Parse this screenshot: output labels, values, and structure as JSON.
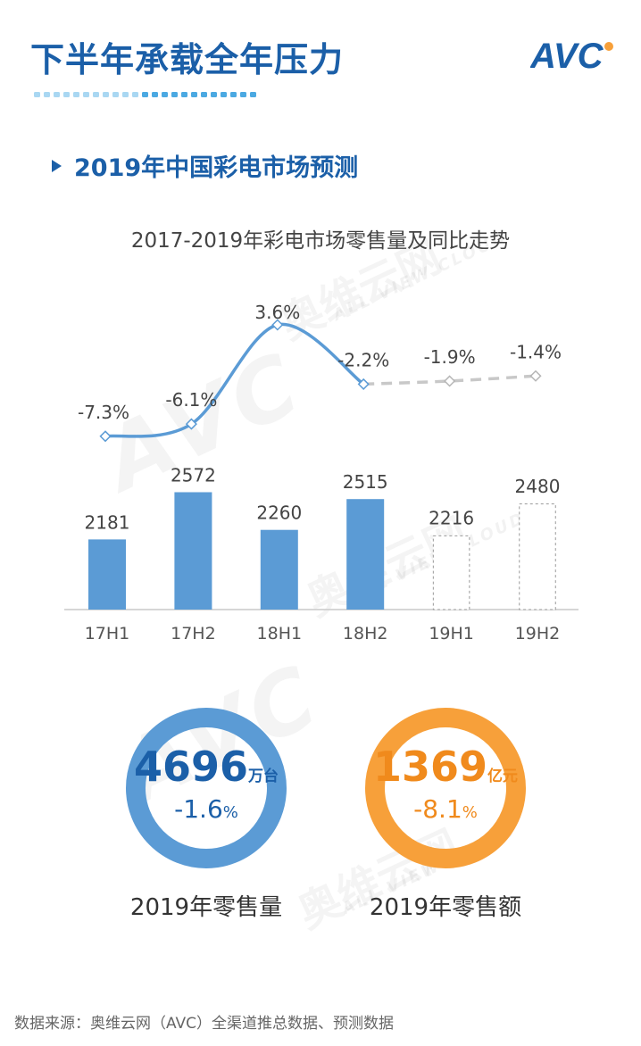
{
  "header": {
    "title": "下半年承载全年压力",
    "logo_text": "AVC"
  },
  "section": {
    "title": "2019年中国彩电市场预测"
  },
  "watermark": {
    "big": "AVC",
    "cn": "奥维云网",
    "en": "ALL VIEW CLOUD"
  },
  "chart_data": {
    "type": "bar",
    "title": "2017-2019年彩电市场零售量及同比走势",
    "categories": [
      "17H1",
      "17H2",
      "18H1",
      "18H2",
      "19H1",
      "19H2"
    ],
    "series": [
      {
        "values": [
          2181,
          2572,
          2260,
          2515,
          2216,
          2480
        ],
        "forecast": [
          false,
          false,
          false,
          false,
          true,
          true
        ],
        "color": "#5b9bd5"
      },
      {
        "type": "line",
        "values": [
          -7.3,
          -6.1,
          3.6,
          -2.2,
          -1.9,
          -1.4
        ],
        "labels": [
          "-7.3%",
          "-6.1%",
          "3.6%",
          "-2.2%",
          "-1.9%",
          "-1.4%"
        ],
        "forecast": [
          false,
          false,
          false,
          false,
          true,
          true
        ],
        "color": "#5b9bd5",
        "forecast_color": "#c8c8c8"
      }
    ]
  },
  "summary": {
    "volume": {
      "value": "4696",
      "unit": "万台",
      "change": "-1.6",
      "pct_sign": "%",
      "caption": "2019年零售量",
      "color": "#5b9bd5",
      "value_color": "#1b5fa8"
    },
    "revenue": {
      "value": "1369",
      "unit": "亿元",
      "change": "-8.1",
      "pct_sign": "%",
      "caption": "2019年零售额",
      "color": "#f7a03a",
      "value_color": "#f08a1c"
    }
  },
  "source": "数据来源：奥维云网（AVC）全渠道推总数据、预测数据"
}
